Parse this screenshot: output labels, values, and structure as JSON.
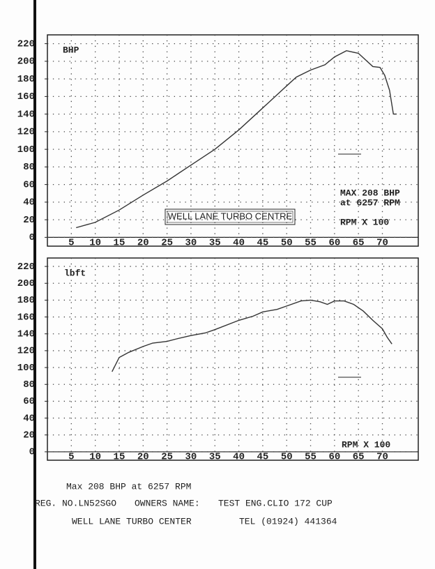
{
  "chart_data": [
    {
      "type": "line",
      "y_label": "BHP",
      "x_label": "RPM X 100",
      "annotations": [
        "WELL LANE TURBO CENTRE",
        "MAX 208 BHP",
        "at 6257 RPM"
      ],
      "x": [
        6,
        10,
        15,
        20,
        25,
        30,
        35,
        40,
        45,
        50,
        52,
        55,
        58,
        60,
        62.5,
        65,
        68,
        69.5,
        70.5,
        71.5,
        72.3,
        73
      ],
      "values": [
        11,
        17,
        31,
        48,
        64,
        82,
        100,
        122,
        147,
        172,
        182,
        190,
        196,
        205,
        212,
        209,
        194,
        193,
        184,
        167,
        140,
        140
      ],
      "color": "#333333",
      "xlim": [
        0,
        77.5
      ],
      "xticks": [
        5,
        10,
        15,
        20,
        25,
        30,
        35,
        40,
        45,
        50,
        55,
        60,
        65,
        70
      ],
      "ylim": [
        -10,
        230
      ],
      "yticks": [
        0,
        20,
        40,
        60,
        80,
        100,
        120,
        140,
        160,
        180,
        200,
        220
      ],
      "grid": true
    },
    {
      "type": "line",
      "y_label": "lbft",
      "x_label": "RPM X 100",
      "annotations": [],
      "x": [
        13.5,
        15,
        17,
        20,
        22,
        25,
        27,
        30,
        33,
        35,
        40,
        43,
        45,
        48,
        50,
        53,
        55,
        57,
        58.5,
        60,
        62,
        64,
        66,
        68,
        70,
        71,
        72
      ],
      "values": [
        95,
        112,
        118,
        125,
        129,
        131,
        134,
        138,
        141,
        145,
        156,
        161,
        166,
        169,
        173,
        179,
        180,
        178,
        175,
        179,
        179,
        175,
        167,
        156,
        146,
        136,
        128
      ],
      "color": "#333333",
      "xlim": [
        0,
        77.5
      ],
      "xticks": [
        5,
        10,
        15,
        20,
        25,
        30,
        35,
        40,
        45,
        50,
        55,
        60,
        65,
        70
      ],
      "ylim": [
        -10,
        230
      ],
      "yticks": [
        0,
        20,
        40,
        60,
        80,
        100,
        120,
        140,
        160,
        180,
        200,
        220
      ],
      "grid": true
    }
  ],
  "footer": {
    "max_line": "Max 208 BHP at 6257 RPM",
    "reg": "REG. NO.LN52SGO",
    "owner_label": "OWNERS NAME:",
    "owner": "TEST ENG.CLIO 172 CUP",
    "company": "WELL LANE TURBO CENTER",
    "tel": "TEL (01924) 441364"
  }
}
